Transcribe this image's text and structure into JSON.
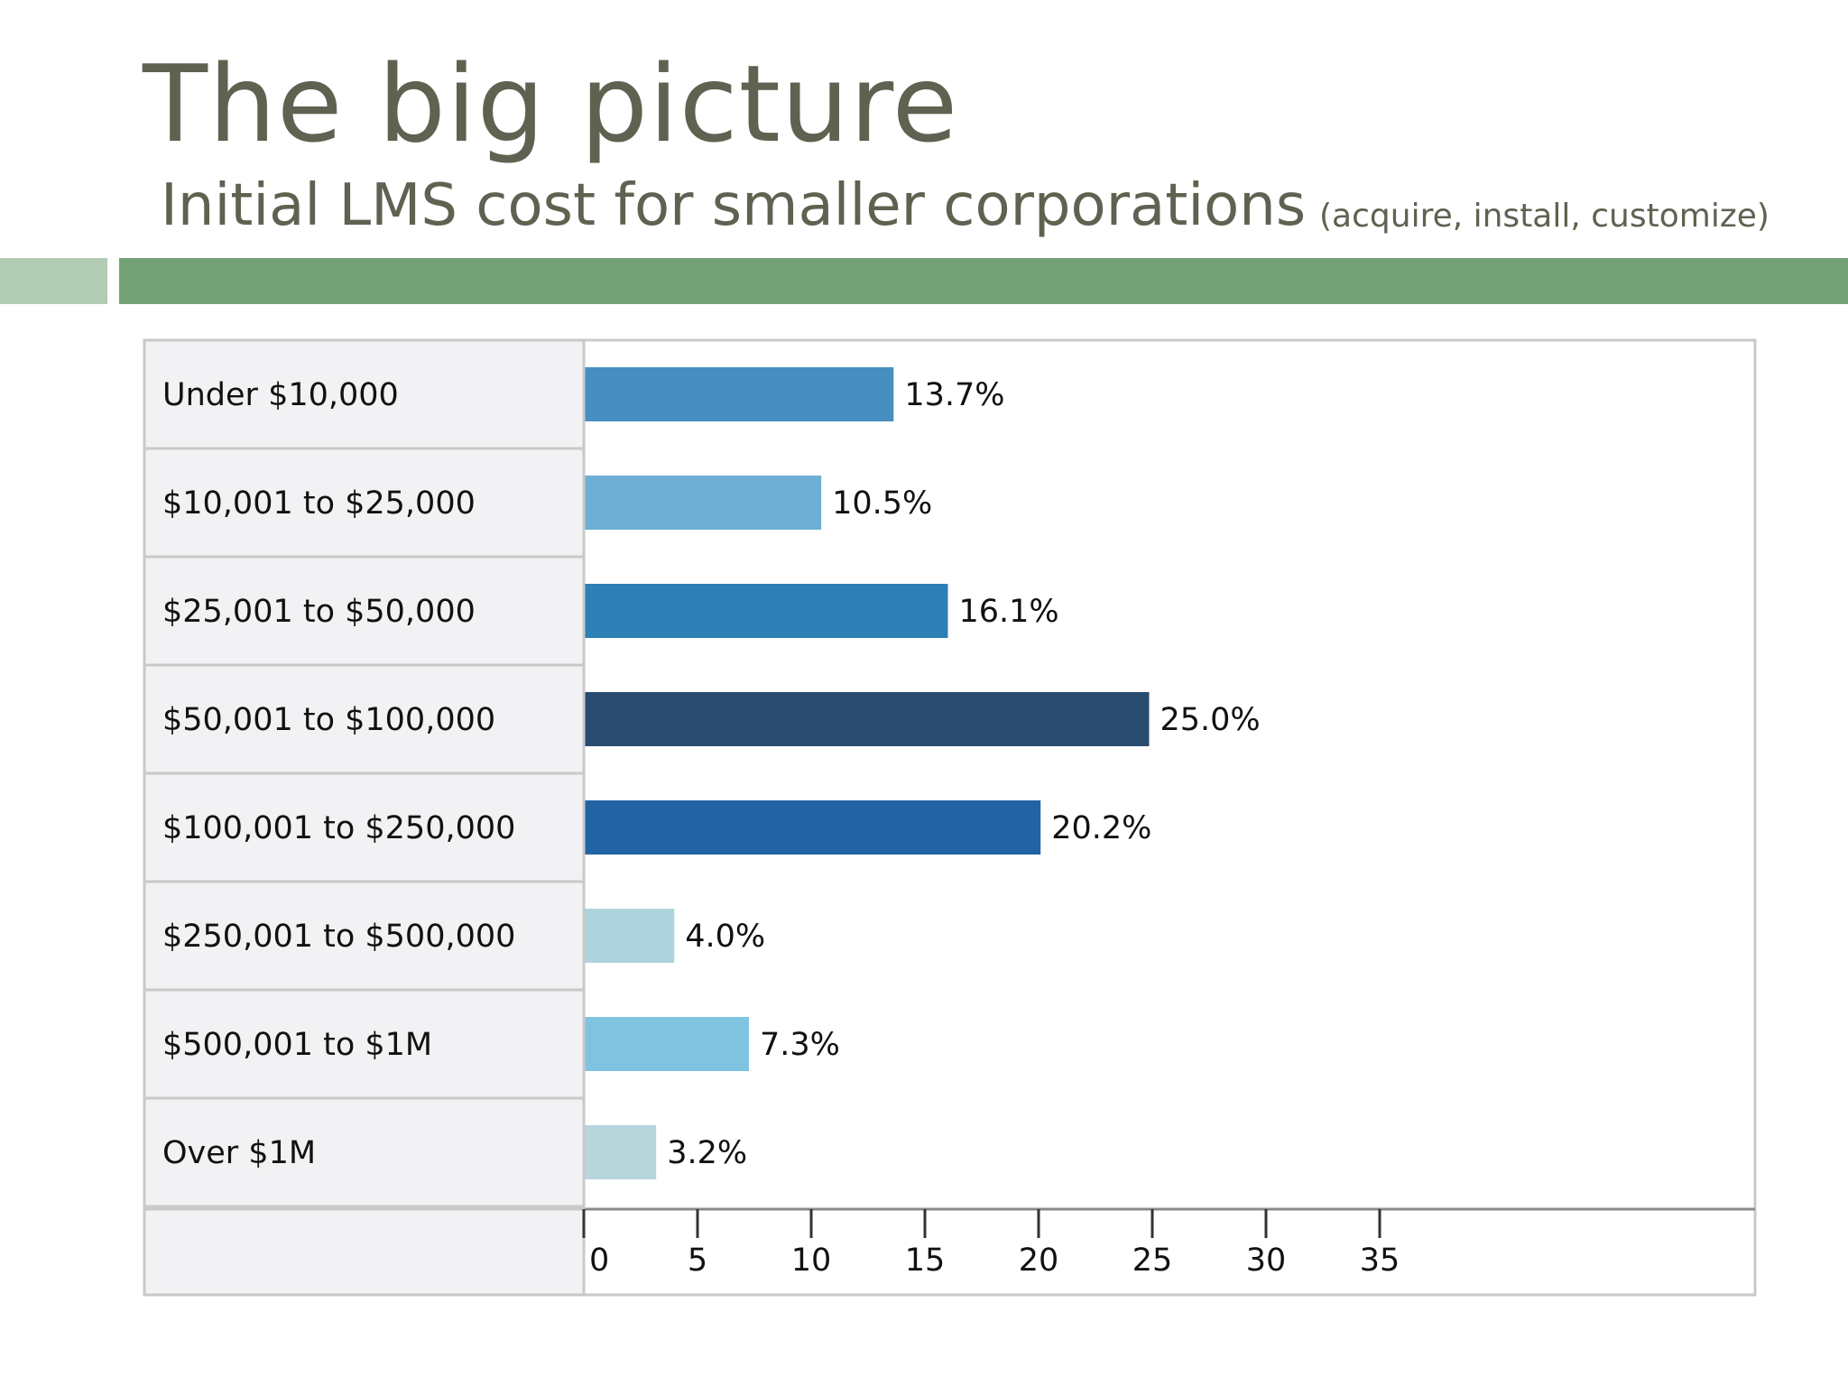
{
  "slide": {
    "title": "The big picture",
    "subtitle": "Initial LMS cost for smaller corporations",
    "subtitle_note": "(acquire, install, customize)"
  },
  "colors": {
    "title_text": "#5f6250",
    "accent_light": "#b2cbb3",
    "accent_dark": "#72a276",
    "label_panel": "#f2f1f3",
    "border": "#c9c9c9"
  },
  "chart_data": {
    "type": "bar",
    "orientation": "horizontal",
    "title": "",
    "xlabel": "",
    "ylabel": "",
    "xlim": [
      0,
      35
    ],
    "ticks": [
      0,
      5,
      10,
      15,
      20,
      25,
      30,
      35
    ],
    "tick_labels": [
      "0",
      "5",
      "10",
      "15",
      "20",
      "25",
      "30",
      "35"
    ],
    "grid": false,
    "categories": [
      "Under $10,000",
      "$10,001 to $25,000",
      "$25,001 to $50,000",
      "$50,001 to $100,000",
      "$100,001 to $250,000",
      "$250,001 to $500,000",
      "$500,001 to $1M",
      "Over $1M"
    ],
    "values": [
      13.7,
      10.5,
      16.1,
      25.0,
      20.2,
      4.0,
      7.3,
      3.2
    ],
    "value_labels": [
      "13.7%",
      "10.5%",
      "16.1%",
      "25.0%",
      "20.2%",
      "4.0%",
      "7.3%",
      "3.2%"
    ],
    "bar_colors": [
      "#478ec1",
      "#6daed4",
      "#2d7fb5",
      "#294b70",
      "#2163a3",
      "#afd3dc",
      "#80c3e1",
      "#b6d6dc"
    ]
  }
}
